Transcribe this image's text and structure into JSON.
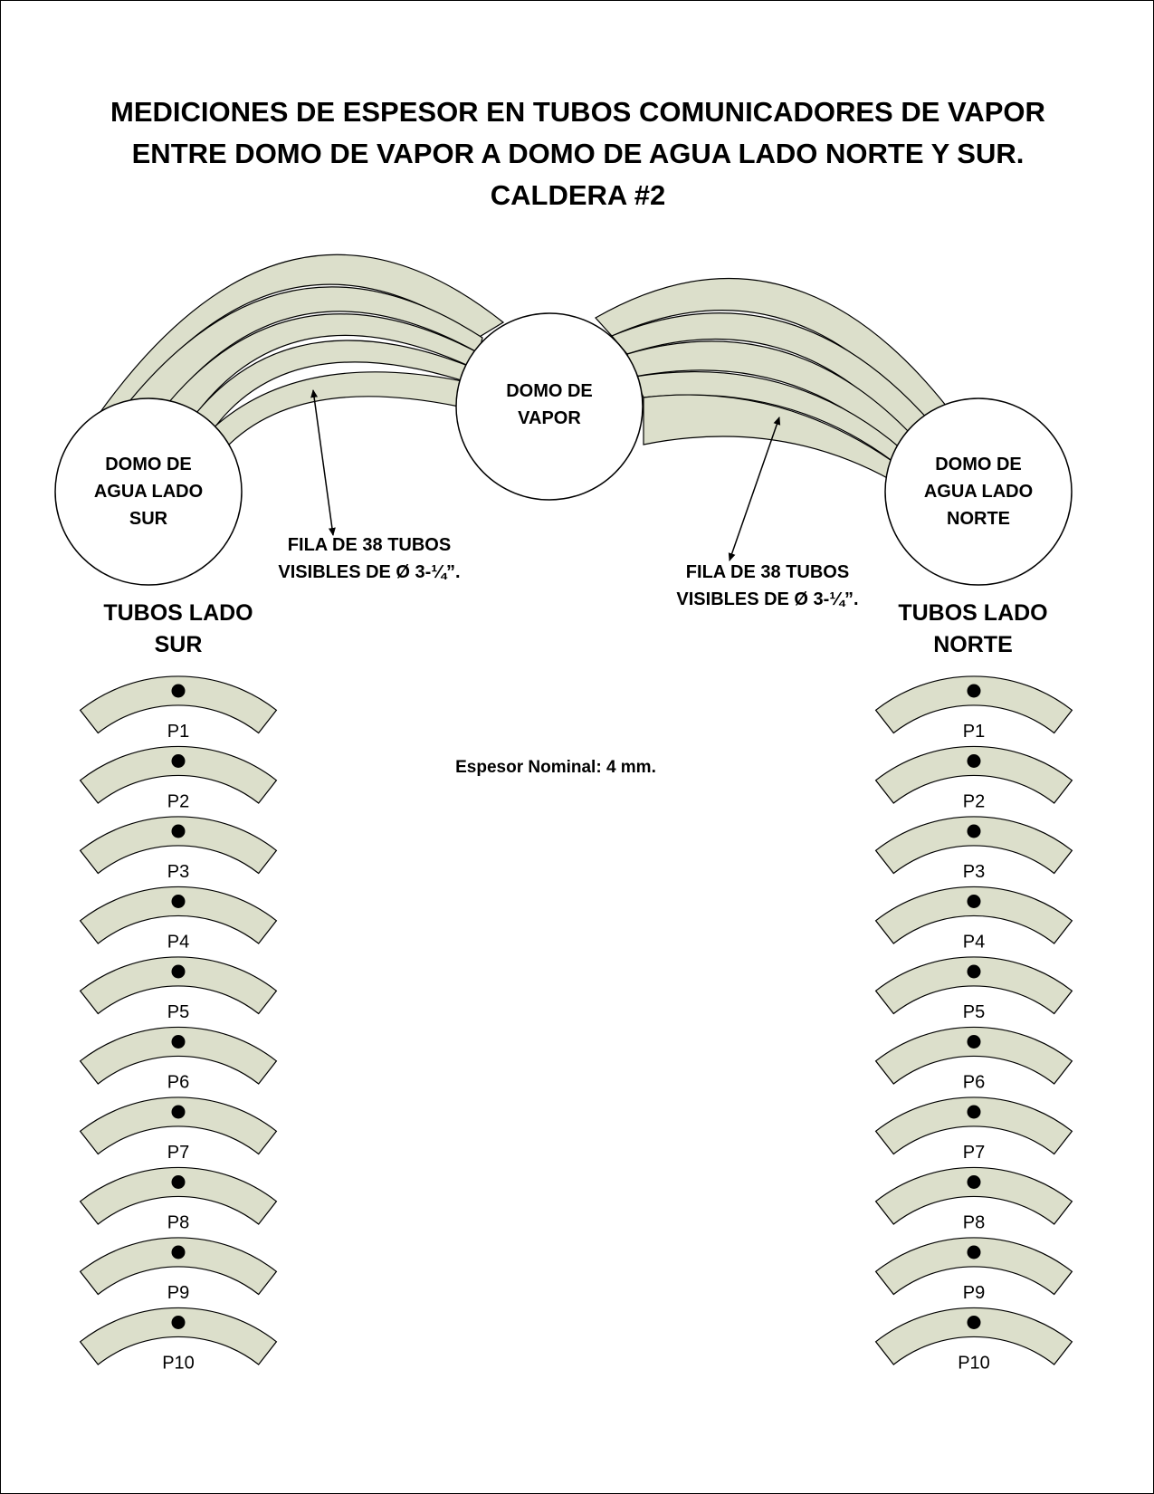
{
  "title_lines": [
    "MEDICIONES DE ESPESOR EN TUBOS COMUNICADORES DE VAPOR",
    "ENTRE DOMO DE VAPOR A DOMO DE AGUA LADO NORTE Y SUR.",
    "CALDERA #2"
  ],
  "domes": {
    "steam": [
      "DOMO DE",
      "VAPOR"
    ],
    "water_south": [
      "DOMO DE",
      "AGUA LADO",
      "SUR"
    ],
    "water_north": [
      "DOMO DE",
      "AGUA LADO",
      "NORTE"
    ]
  },
  "annotations": {
    "left": [
      "FILA DE 38 TUBOS",
      "VISIBLES DE Ø 3-¼”."
    ],
    "right": [
      "FILA DE 38 TUBOS",
      "VISIBLES DE Ø 3-¼”."
    ]
  },
  "sides": {
    "south": [
      "TUBOS LADO",
      "SUR"
    ],
    "north": [
      "TUBOS LADO",
      "NORTE"
    ]
  },
  "nominal_thickness": "Espesor Nominal: 4 mm.",
  "points": [
    "P1",
    "P2",
    "P3",
    "P4",
    "P5",
    "P6",
    "P7",
    "P8",
    "P9",
    "P10"
  ],
  "colors": {
    "tube_fill": "#dcdfcb",
    "outline": "#000000",
    "dome_fill": "#ffffff"
  }
}
